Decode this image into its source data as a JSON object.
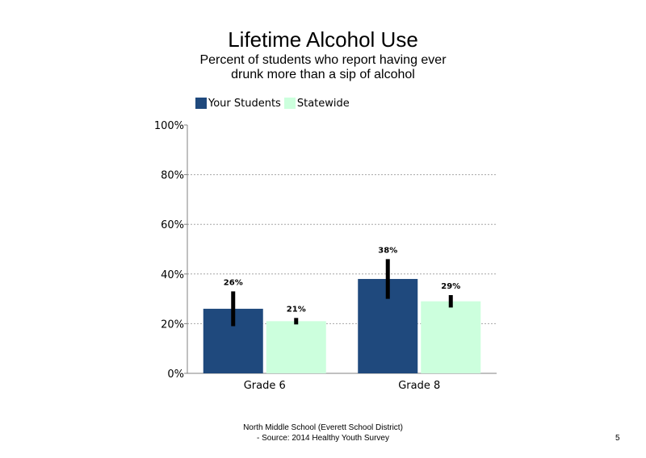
{
  "chart_data": {
    "type": "bar",
    "title": "Lifetime Alcohol Use",
    "subtitle": "Percent of students who report having ever drunk more than a sip of alcohol",
    "categories": [
      "Grade 6",
      "Grade 8"
    ],
    "series": [
      {
        "name": "Your Students",
        "values": [
          26,
          38
        ],
        "labels": [
          "26%",
          "38%"
        ],
        "error": [
          [
            19,
            33
          ],
          [
            30,
            46
          ]
        ],
        "color": "#1F497D"
      },
      {
        "name": "Statewide",
        "values": [
          21,
          29
        ],
        "labels": [
          "21%",
          "29%"
        ],
        "error": [
          [
            19.7,
            22.3
          ],
          [
            26.5,
            31.5
          ]
        ],
        "color": "#CCFFDD"
      }
    ],
    "yticks": [
      "0%",
      "20%",
      "40%",
      "60%",
      "80%",
      "100%"
    ],
    "ylim": [
      0,
      100
    ],
    "grid": true,
    "legend": "top-left"
  },
  "footer": {
    "line1": "North Middle School (Everett School District)",
    "line2": "- Source: 2014 Healthy Youth Survey"
  },
  "page_number": "5"
}
